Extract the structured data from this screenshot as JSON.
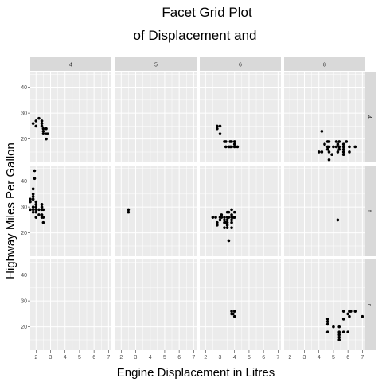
{
  "chart_data": {
    "type": "scatter",
    "title_lines": [
      "Facet Grid Plot",
      "of Displacement and"
    ],
    "xlabel": "Engine Displacement in Litres",
    "ylabel": "Highway Miles Per Gallon",
    "xlim": [
      1.6,
      7.2
    ],
    "ylim": [
      11,
      46
    ],
    "x_ticks": [
      2,
      3,
      4,
      5,
      6,
      7
    ],
    "y_ticks": [
      20,
      30,
      40
    ],
    "columns": [
      "4",
      "5",
      "6",
      "8"
    ],
    "rows": [
      "4",
      "f",
      "r"
    ],
    "grid": true,
    "point_color": "#000000",
    "panel_bg": "#ebebeb",
    "strip_bg": "#d9d9d9",
    "panels": [
      {
        "row": "4",
        "col": "4",
        "points": [
          [
            1.8,
            26
          ],
          [
            2.0,
            27
          ],
          [
            2.0,
            25
          ],
          [
            2.2,
            28
          ],
          [
            2.4,
            26
          ],
          [
            2.4,
            27
          ],
          [
            2.4,
            25
          ],
          [
            2.5,
            24
          ],
          [
            2.5,
            23
          ],
          [
            2.5,
            22
          ],
          [
            2.7,
            22
          ],
          [
            2.7,
            20
          ],
          [
            2.7,
            24
          ],
          [
            2.8,
            22
          ]
        ]
      },
      {
        "row": "4",
        "col": "6",
        "points": [
          [
            2.8,
            25
          ],
          [
            2.8,
            24
          ],
          [
            3.0,
            25
          ],
          [
            3.0,
            22
          ],
          [
            3.3,
            19
          ],
          [
            3.4,
            17
          ],
          [
            3.4,
            19
          ],
          [
            3.6,
            17
          ],
          [
            3.7,
            19
          ],
          [
            3.7,
            17
          ],
          [
            3.8,
            19
          ],
          [
            3.8,
            17
          ],
          [
            4.0,
            19
          ],
          [
            4.0,
            17
          ],
          [
            4.0,
            18
          ],
          [
            4.2,
            17
          ]
        ]
      },
      {
        "row": "4",
        "col": "8",
        "points": [
          [
            4.2,
            23
          ],
          [
            4.2,
            15
          ],
          [
            4.4,
            18
          ],
          [
            4.6,
            19
          ],
          [
            4.6,
            17
          ],
          [
            4.6,
            16
          ],
          [
            4.7,
            19
          ],
          [
            4.7,
            17
          ],
          [
            4.7,
            15
          ],
          [
            4.7,
            12
          ],
          [
            5.0,
            17
          ],
          [
            5.2,
            17
          ],
          [
            5.2,
            19
          ],
          [
            5.3,
            15
          ],
          [
            5.3,
            18
          ],
          [
            5.4,
            19
          ],
          [
            5.4,
            16
          ],
          [
            5.4,
            17
          ],
          [
            5.7,
            15
          ],
          [
            5.7,
            17
          ],
          [
            5.7,
            18
          ],
          [
            5.7,
            16
          ],
          [
            5.9,
            19
          ],
          [
            6.1,
            17
          ],
          [
            6.1,
            15
          ],
          [
            6.5,
            17
          ],
          [
            4.9,
            14
          ],
          [
            5.7,
            14
          ],
          [
            4.0,
            15
          ]
        ]
      },
      {
        "row": "f",
        "col": "4",
        "points": [
          [
            1.6,
            32
          ],
          [
            1.6,
            33
          ],
          [
            1.6,
            29
          ],
          [
            1.8,
            35
          ],
          [
            1.8,
            37
          ],
          [
            1.8,
            29
          ],
          [
            1.8,
            28
          ],
          [
            1.8,
            30
          ],
          [
            1.9,
            44
          ],
          [
            1.9,
            41
          ],
          [
            2.0,
            26
          ],
          [
            2.0,
            28
          ],
          [
            2.0,
            29
          ],
          [
            2.0,
            30
          ],
          [
            2.0,
            31
          ],
          [
            2.4,
            26
          ],
          [
            2.4,
            27
          ],
          [
            2.4,
            29
          ],
          [
            2.4,
            30
          ],
          [
            2.4,
            31
          ],
          [
            2.5,
            24
          ],
          [
            2.5,
            26
          ],
          [
            2.5,
            29
          ],
          [
            2.2,
            27
          ],
          [
            2.2,
            29
          ],
          [
            1.8,
            34
          ],
          [
            2.0,
            32
          ],
          [
            1.8,
            33
          ]
        ]
      },
      {
        "row": "f",
        "col": "5",
        "points": [
          [
            2.5,
            28
          ],
          [
            2.5,
            29
          ]
        ]
      },
      {
        "row": "f",
        "col": "6",
        "points": [
          [
            2.5,
            26
          ],
          [
            2.7,
            26
          ],
          [
            2.8,
            24
          ],
          [
            2.8,
            23
          ],
          [
            3.0,
            26
          ],
          [
            3.0,
            25
          ],
          [
            3.1,
            27
          ],
          [
            3.1,
            26
          ],
          [
            3.3,
            26
          ],
          [
            3.3,
            24
          ],
          [
            3.3,
            22
          ],
          [
            3.4,
            24
          ],
          [
            3.5,
            28
          ],
          [
            3.5,
            26
          ],
          [
            3.5,
            25
          ],
          [
            3.5,
            24
          ],
          [
            3.5,
            23
          ],
          [
            3.5,
            22
          ],
          [
            3.6,
            26
          ],
          [
            3.6,
            28
          ],
          [
            3.8,
            29
          ],
          [
            3.8,
            27
          ],
          [
            3.8,
            26
          ],
          [
            3.8,
            24
          ],
          [
            3.8,
            22
          ],
          [
            3.9,
            26
          ],
          [
            4.0,
            26
          ],
          [
            4.0,
            28
          ],
          [
            3.6,
            17
          ],
          [
            3.8,
            25
          ],
          [
            3.3,
            25
          ]
        ]
      },
      {
        "row": "f",
        "col": "8",
        "points": [
          [
            5.3,
            25
          ]
        ]
      },
      {
        "row": "r",
        "col": "6",
        "points": [
          [
            3.8,
            26
          ],
          [
            3.8,
            25
          ],
          [
            4.0,
            26
          ],
          [
            4.0,
            24
          ],
          [
            3.9,
            25
          ]
        ]
      },
      {
        "row": "r",
        "col": "8",
        "points": [
          [
            4.6,
            23
          ],
          [
            4.6,
            22
          ],
          [
            4.6,
            21
          ],
          [
            4.6,
            18
          ],
          [
            5.0,
            20
          ],
          [
            5.4,
            20
          ],
          [
            5.4,
            18
          ],
          [
            5.4,
            17
          ],
          [
            5.4,
            16
          ],
          [
            5.4,
            15
          ],
          [
            5.7,
            18
          ],
          [
            5.7,
            23
          ],
          [
            5.7,
            26
          ],
          [
            6.0,
            18
          ],
          [
            6.1,
            26
          ],
          [
            6.1,
            24
          ],
          [
            6.2,
            26
          ],
          [
            6.5,
            26
          ],
          [
            7.0,
            24
          ],
          [
            6.0,
            25
          ]
        ]
      }
    ]
  }
}
